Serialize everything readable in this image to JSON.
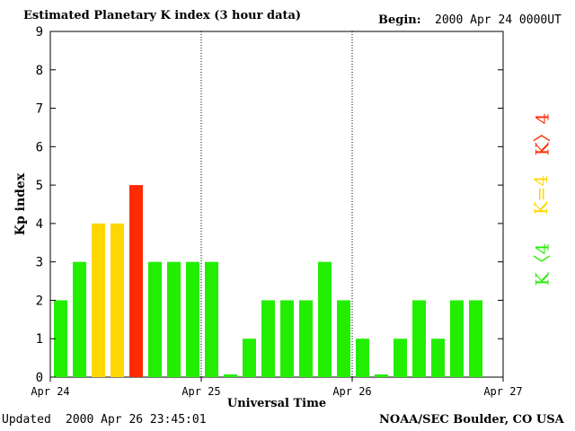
{
  "header": {
    "title": "Estimated Planetary K index (3 hour data)",
    "begin_label": "Begin:",
    "begin_value": "2000 Apr 24 0000UT"
  },
  "footer": {
    "updated_label": "Updated",
    "updated_value": "2000 Apr 26 23:45:01",
    "source": "NOAA/SEC Boulder, CO USA"
  },
  "legend": {
    "gt4": "K〉4",
    "eq4": "K=4",
    "lt4": "K〈4"
  },
  "colors": {
    "lt4": "#22ee00",
    "eq4": "#ffd700",
    "gt4": "#ff2a00",
    "axis": "#000000"
  },
  "chart_data": {
    "type": "bar",
    "title": "Estimated Planetary K index (3 hour data)",
    "xlabel": "Universal Time",
    "ylabel": "Kp index",
    "ylim": [
      0,
      9
    ],
    "xlim_days": [
      0,
      3
    ],
    "yticks": [
      0,
      1,
      2,
      3,
      4,
      5,
      6,
      7,
      8,
      9
    ],
    "xticks": [
      "Apr 24",
      "Apr 25",
      "Apr 26",
      "Apr 27"
    ],
    "day_separators": [
      "Apr 25",
      "Apr 26"
    ],
    "interval": "3 hour",
    "categories": [
      "Apr 24 00UT",
      "Apr 24 03UT",
      "Apr 24 06UT",
      "Apr 24 09UT",
      "Apr 24 12UT",
      "Apr 24 15UT",
      "Apr 24 18UT",
      "Apr 24 21UT",
      "Apr 25 00UT",
      "Apr 25 03UT",
      "Apr 25 06UT",
      "Apr 25 09UT",
      "Apr 25 12UT",
      "Apr 25 15UT",
      "Apr 25 18UT",
      "Apr 25 21UT",
      "Apr 26 00UT",
      "Apr 26 03UT",
      "Apr 26 06UT",
      "Apr 26 09UT",
      "Apr 26 12UT",
      "Apr 26 15UT",
      "Apr 26 18UT",
      "Apr 26 21UT"
    ],
    "values": [
      2,
      3,
      4,
      4,
      5,
      3,
      3,
      3,
      3,
      0,
      1,
      2,
      2,
      2,
      3,
      2,
      1,
      0,
      1,
      2,
      1,
      2,
      2,
      null
    ]
  }
}
